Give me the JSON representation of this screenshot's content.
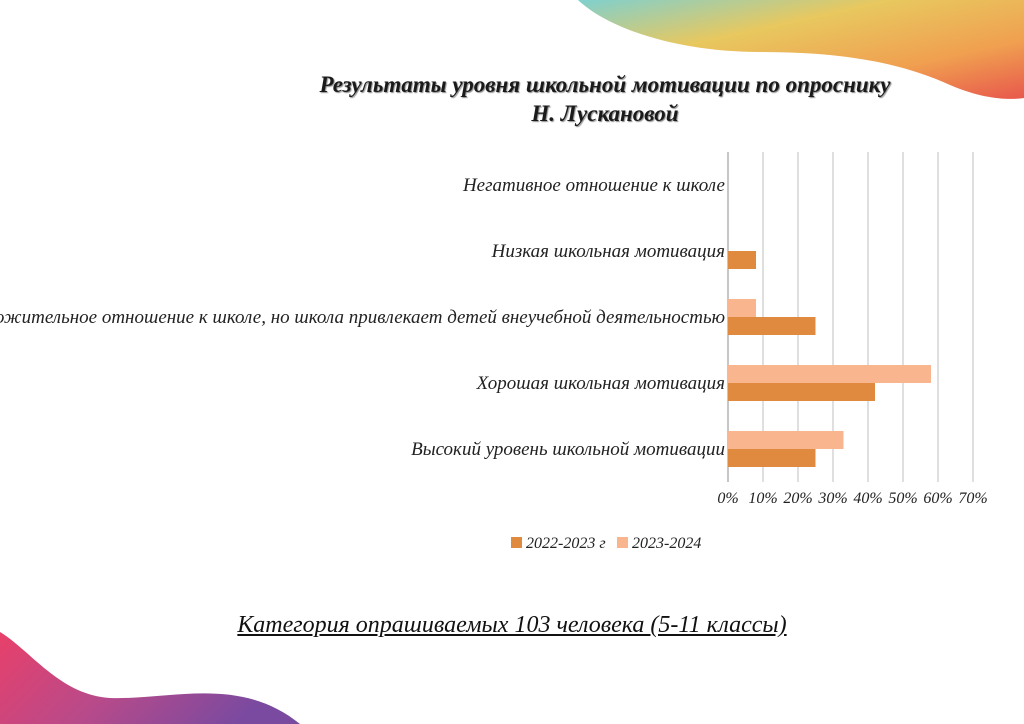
{
  "colors": {
    "series_2022": "#e08a40",
    "series_2023": "#f8b58e",
    "grid": "#bfbfbf",
    "axis": "#8c8c8c"
  },
  "chart_data": {
    "type": "bar",
    "orientation": "horizontal",
    "title_line1": "Результаты уровня школьной мотивации по опроснику",
    "title_line2": "Н. Лускановой",
    "categories": [
      "Негативное отношение к школе",
      "Низкая школьная мотивация",
      "Положительное отношение к школе, но школа привлекает детей внеучебной деятельностью",
      "Хорошая школьная мотивация",
      "Высокий уровень школьной мотивации"
    ],
    "series": [
      {
        "name": "2022-2023 г",
        "values": [
          0,
          8,
          25,
          42,
          25
        ]
      },
      {
        "name": "2023-2024",
        "values": [
          0,
          0,
          8,
          58,
          33
        ]
      }
    ],
    "xlim": [
      0,
      70
    ],
    "xticks": [
      "0%",
      "10%",
      "20%",
      "30%",
      "40%",
      "50%",
      "60%",
      "70%"
    ],
    "grid": true,
    "legend": "bottom"
  },
  "footer": "Категория опрашиваемых 103 человека (5-11 классы)"
}
